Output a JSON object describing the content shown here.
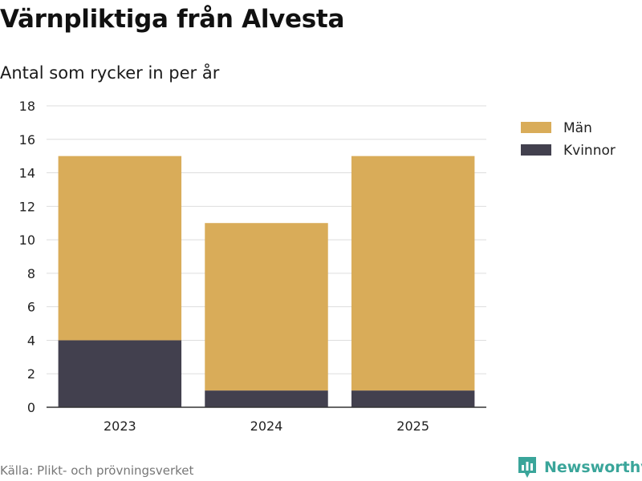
{
  "header": {
    "title": "Värnpliktiga från Alvesta",
    "subtitle": "Antal som rycker in per år"
  },
  "footer": {
    "source": "Källa: Plikt- och prövningsverket",
    "brand": "Newsworthy"
  },
  "colors": {
    "men": "#d9ac59",
    "women": "#42404e",
    "grid": "#dddddd",
    "brand": "#3aa59a"
  },
  "chart_data": {
    "type": "bar",
    "stacked": true,
    "title": "Värnpliktiga från Alvesta",
    "subtitle": "Antal som rycker in per år",
    "xlabel": "",
    "ylabel": "",
    "categories": [
      "2023",
      "2024",
      "2025"
    ],
    "series": [
      {
        "name": "Kvinnor",
        "values": [
          4,
          1,
          1
        ]
      },
      {
        "name": "Män",
        "values": [
          11,
          10,
          14
        ]
      }
    ],
    "legend": [
      "Män",
      "Kvinnor"
    ],
    "legend_position": "top-right",
    "ylim": [
      0,
      18
    ],
    "yticks": [
      "0",
      "2",
      "4",
      "6",
      "8",
      "10",
      "12",
      "14",
      "16",
      "18"
    ],
    "grid": true
  }
}
